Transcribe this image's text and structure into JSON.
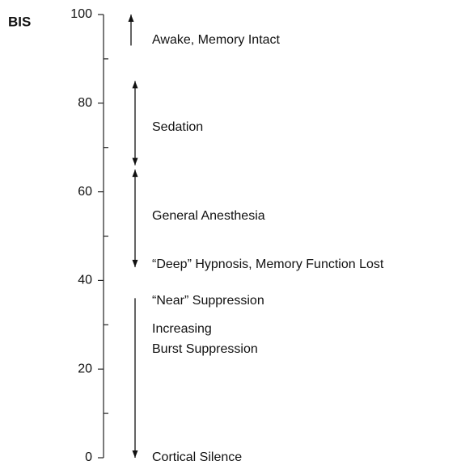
{
  "axis_title": "BIS",
  "ylim": [
    0,
    100
  ],
  "yticks": [
    0,
    20,
    40,
    60,
    80,
    100
  ],
  "minor_ticks": [
    10,
    30,
    50,
    70,
    90
  ],
  "ranges": [
    {
      "from": 93,
      "to": 100,
      "arrows": "end"
    },
    {
      "from": 85,
      "to": 66,
      "arrows": "both"
    },
    {
      "from": 65,
      "to": 43,
      "arrows": "both"
    },
    {
      "from": 36,
      "to": 0,
      "arrows": "end"
    }
  ],
  "labels": [
    "Awake, Memory Intact",
    "Sedation",
    "General Anesthesia",
    "“Deep” Hypnosis, Memory Function Lost",
    "“Near” Suppression",
    "Increasing",
    "Burst Suppression",
    "Cortical Silence"
  ]
}
